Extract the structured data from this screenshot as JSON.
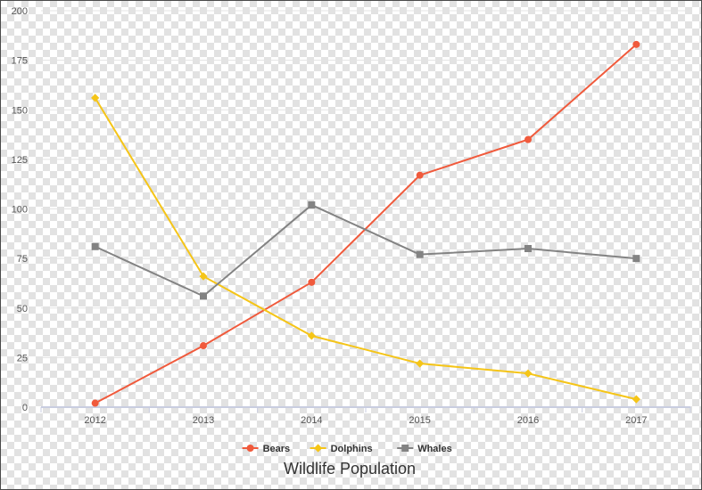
{
  "chart_data": {
    "type": "line",
    "title": "Wildlife Population",
    "xlabel": "",
    "ylabel": "",
    "categories": [
      "2012",
      "2013",
      "2014",
      "2015",
      "2016",
      "2017"
    ],
    "ylim": [
      0,
      200
    ],
    "yticks": [
      "0",
      "25",
      "50",
      "75",
      "100",
      "125",
      "150",
      "175",
      "200"
    ],
    "grid": true,
    "legend_position": "bottom",
    "series": [
      {
        "name": "Bears",
        "color": "#f05a3c",
        "marker": "circle",
        "values": [
          2,
          31,
          63,
          117,
          135,
          183
        ]
      },
      {
        "name": "Dolphins",
        "color": "#f5c518",
        "marker": "diamond",
        "values": [
          156,
          66,
          36,
          22,
          17,
          4
        ]
      },
      {
        "name": "Whales",
        "color": "#838383",
        "marker": "square",
        "values": [
          81,
          56,
          102,
          77,
          80,
          75
        ]
      }
    ]
  }
}
